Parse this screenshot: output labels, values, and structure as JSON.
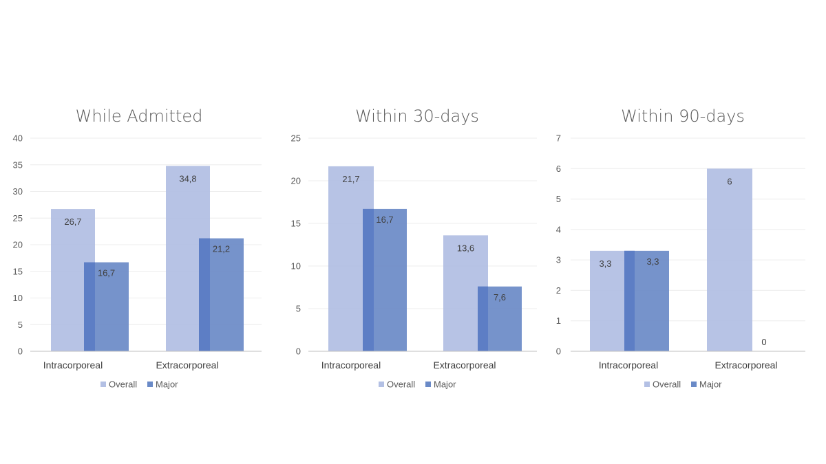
{
  "colors": {
    "overall": "#b3c0e4",
    "major": "#6a8ac7",
    "major_edge": "#5b7cc4"
  },
  "chart_data": [
    {
      "type": "bar",
      "title": "While Admitted",
      "categories": [
        "Intracorporeal",
        "Extracorporeal"
      ],
      "series": [
        {
          "name": "Overall",
          "values": [
            26.7,
            34.8
          ],
          "labels": [
            "26,7",
            "34,8"
          ]
        },
        {
          "name": "Major",
          "values": [
            16.7,
            21.2
          ],
          "labels": [
            "16,7",
            "21,2"
          ]
        }
      ],
      "ylim": [
        0,
        40
      ],
      "yticks": [
        0,
        5,
        10,
        15,
        20,
        25,
        30,
        35,
        40
      ],
      "grid": true,
      "legend": "bottom"
    },
    {
      "type": "bar",
      "title": "Within 30-days",
      "categories": [
        "Intracorporeal",
        "Extracorporeal"
      ],
      "series": [
        {
          "name": "Overall",
          "values": [
            21.7,
            13.6
          ],
          "labels": [
            "21,7",
            "13,6"
          ]
        },
        {
          "name": "Major",
          "values": [
            16.7,
            7.6
          ],
          "labels": [
            "16,7",
            "7,6"
          ]
        }
      ],
      "ylim": [
        0,
        25
      ],
      "yticks": [
        0,
        5,
        10,
        15,
        20,
        25
      ],
      "grid": true,
      "legend": "bottom"
    },
    {
      "type": "bar",
      "title": "Within 90-days",
      "categories": [
        "Intracorporeal",
        "Extracorporeal"
      ],
      "series": [
        {
          "name": "Overall",
          "values": [
            3.3,
            6
          ],
          "labels": [
            "3,3",
            "6"
          ]
        },
        {
          "name": "Major",
          "values": [
            3.3,
            0
          ],
          "labels": [
            "3,3",
            "0"
          ]
        }
      ],
      "ylim": [
        0,
        7
      ],
      "yticks": [
        0,
        1,
        2,
        3,
        4,
        5,
        6,
        7
      ],
      "grid": true,
      "legend": "bottom"
    }
  ]
}
